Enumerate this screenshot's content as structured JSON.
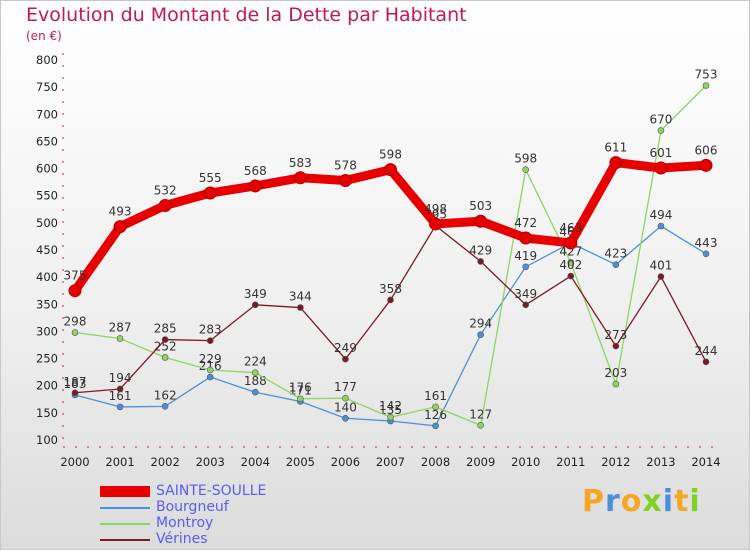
{
  "chart_data": {
    "type": "line",
    "title": "Evolution du Montant de la Dette par Habitant",
    "subtitle": "(en €)",
    "categories": [
      "2000",
      "2001",
      "2002",
      "2003",
      "2004",
      "2005",
      "2006",
      "2007",
      "2008",
      "2009",
      "2010",
      "2011",
      "2012",
      "2013",
      "2014"
    ],
    "ylim": [
      100,
      800
    ],
    "yticks": [
      100,
      150,
      200,
      250,
      300,
      350,
      400,
      450,
      500,
      550,
      600,
      650,
      700,
      750,
      800
    ],
    "grid": false,
    "legend_position": "bottom-left",
    "series": [
      {
        "name": "SAINTE-SOULLE",
        "color": "#e80000",
        "values": [
          375,
          493,
          532,
          555,
          568,
          583,
          578,
          598,
          498,
          503,
          472,
          463,
          611,
          601,
          606
        ]
      },
      {
        "name": "Bourgneuf",
        "color": "#4a90d9",
        "values": [
          183,
          161,
          162,
          216,
          188,
          171,
          140,
          135,
          126,
          294,
          419,
          463,
          423,
          494,
          443
        ]
      },
      {
        "name": "Montroy",
        "color": "#8fd460",
        "values": [
          298,
          287,
          252,
          229,
          224,
          176,
          177,
          142,
          161,
          127,
          598,
          427,
          203,
          670,
          753
        ]
      },
      {
        "name": "Vérines",
        "color": "#7a1a24",
        "values": [
          187,
          194,
          285,
          283,
          349,
          344,
          249,
          358,
          495,
          429,
          349,
          402,
          273,
          401,
          244
        ]
      }
    ]
  },
  "logo": {
    "letters": [
      "P",
      "r",
      "o",
      "x",
      "i",
      "t",
      "i"
    ],
    "colors": [
      "#f5a623",
      "#4a90d9",
      "#f5a623",
      "#7ed321",
      "#4a90d9",
      "#f5a623",
      "#7ed321"
    ]
  }
}
